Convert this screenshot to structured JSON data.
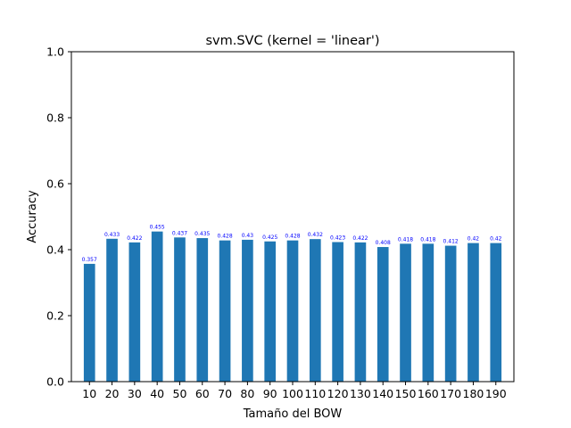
{
  "chart_data": {
    "type": "bar",
    "title": "svm.SVC (kernel = 'linear')",
    "xlabel": "Tamaño del BOW",
    "ylabel": "Accuracy",
    "categories": [
      "10",
      "20",
      "30",
      "40",
      "50",
      "60",
      "70",
      "80",
      "90",
      "100",
      "110",
      "120",
      "130",
      "140",
      "150",
      "160",
      "170",
      "180",
      "190"
    ],
    "values": [
      0.357,
      0.433,
      0.422,
      0.455,
      0.437,
      0.435,
      0.428,
      0.43,
      0.425,
      0.428,
      0.432,
      0.423,
      0.422,
      0.408,
      0.418,
      0.418,
      0.412,
      0.42,
      0.42
    ],
    "data_labels": [
      "0.357",
      "0.433",
      "0.422",
      "0.455",
      "0.437",
      "0.435",
      "0.428",
      "0.43",
      "0.425",
      "0.428",
      "0.432",
      "0.423",
      "0.422",
      "0.408",
      "0.418",
      "0.418",
      "0.412",
      "0.42",
      "0.42"
    ],
    "ylim": [
      0,
      1.0
    ],
    "yticks": [
      "0.0",
      "0.2",
      "0.4",
      "0.6",
      "0.8",
      "1.0"
    ],
    "grid": false,
    "colors": {
      "bar": "#1f77b4",
      "data_label": "#0000ff"
    }
  }
}
